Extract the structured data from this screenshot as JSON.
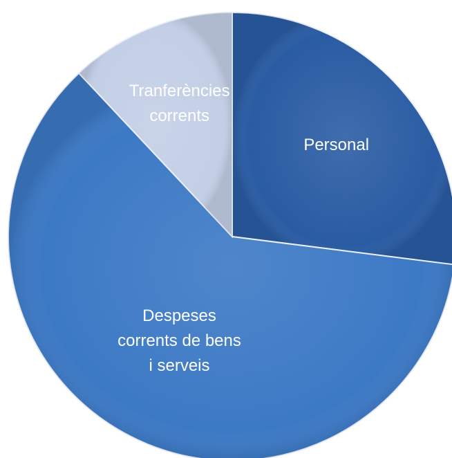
{
  "chart_data": {
    "type": "pie",
    "title": "",
    "slices": [
      {
        "label_lines": [
          "Personal"
        ],
        "value": 27,
        "color": "#2a5ca3"
      },
      {
        "label_lines": [
          "Despeses",
          "corrents de bens",
          "i serveis"
        ],
        "value": 61,
        "color": "#3c79c5"
      },
      {
        "label_lines": [
          "Tranferències",
          "corrents"
        ],
        "value": 12,
        "color": "#c3cfe6"
      }
    ],
    "legend": "none",
    "start_angle_deg": 0,
    "direction": "clockwise"
  }
}
